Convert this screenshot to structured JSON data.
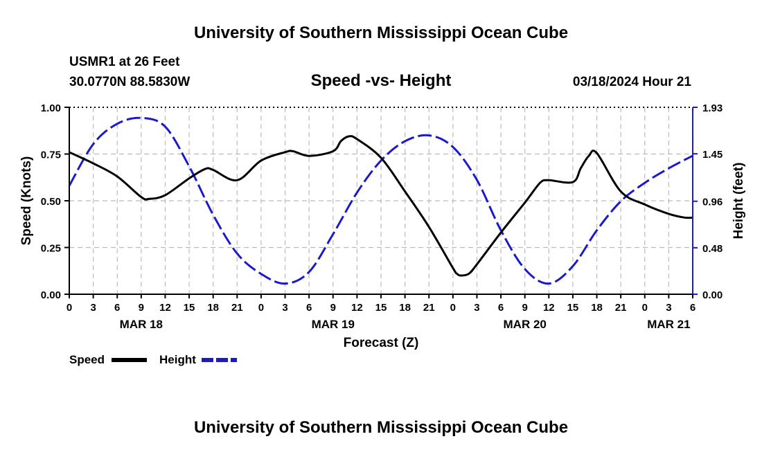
{
  "header": {
    "title": "University of Southern Mississippi Ocean Cube",
    "station": "USMR1 at 26 Feet",
    "location": "30.0770N  88.5830W",
    "subtitle": "Speed -vs- Height",
    "datetime": "03/18/2024 Hour 21"
  },
  "footer": {
    "title": "University of Southern Mississippi Ocean Cube"
  },
  "colors": {
    "speed": "#000000",
    "height": "#1a1acc",
    "grid": "#bbbbbb",
    "background": "#ffffff"
  },
  "chart_data": {
    "type": "line",
    "title": "Speed -vs- Height",
    "xlabel": "Forecast (Z)",
    "ylabel": "Speed (Knots)",
    "y2label": "Height (feet)",
    "xlim": [
      0,
      78
    ],
    "ylim": [
      0,
      1.0
    ],
    "y2lim": [
      0,
      1.93
    ],
    "x_ticks": [
      0,
      3,
      6,
      9,
      12,
      15,
      18,
      21,
      24,
      27,
      30,
      33,
      36,
      39,
      42,
      45,
      48,
      51,
      54,
      57,
      60,
      63,
      66,
      69,
      72,
      75,
      78
    ],
    "x_tick_labels": [
      "0",
      "3",
      "6",
      "9",
      "12",
      "15",
      "18",
      "21",
      "0",
      "3",
      "6",
      "9",
      "12",
      "15",
      "18",
      "21",
      "0",
      "3",
      "6",
      "9",
      "12",
      "15",
      "18",
      "21",
      "0",
      "3",
      "6"
    ],
    "date_labels": [
      {
        "x": 9,
        "label": "MAR 18"
      },
      {
        "x": 33,
        "label": "MAR 19"
      },
      {
        "x": 57,
        "label": "MAR 20"
      },
      {
        "x": 75,
        "label": "MAR 21"
      }
    ],
    "y_ticks": [
      0.0,
      0.25,
      0.5,
      0.75,
      1.0
    ],
    "y_tick_labels": [
      "0.00",
      "0.25",
      "0.50",
      "0.75",
      "1.00"
    ],
    "y2_ticks": [
      0.0,
      0.48,
      0.96,
      1.45,
      1.93
    ],
    "y2_tick_labels": [
      "0.00",
      "0.48",
      "0.96",
      "1.45",
      "1.93"
    ],
    "grid": true,
    "legend": [
      {
        "name": "Speed",
        "style": "solid",
        "color": "#000000"
      },
      {
        "name": "Height",
        "style": "dashed",
        "color": "#1a1acc"
      }
    ],
    "legend_position": "bottom-left",
    "series": [
      {
        "name": "Speed",
        "axis": "left",
        "style": "solid",
        "x": [
          0,
          3,
          6,
          9,
          10,
          12,
          15,
          17,
          18,
          21,
          24,
          27,
          28,
          30,
          33,
          34,
          35,
          36,
          39,
          42,
          45,
          48,
          48.5,
          49,
          50,
          51,
          54,
          57,
          57.7,
          59,
          60,
          63,
          64,
          65,
          66,
          69,
          72,
          75,
          77,
          78
        ],
        "y": [
          0.76,
          0.7,
          0.63,
          0.52,
          0.51,
          0.53,
          0.62,
          0.67,
          0.665,
          0.61,
          0.715,
          0.76,
          0.765,
          0.74,
          0.765,
          0.82,
          0.845,
          0.83,
          0.73,
          0.55,
          0.36,
          0.14,
          0.11,
          0.1,
          0.11,
          0.16,
          0.33,
          0.49,
          0.53,
          0.6,
          0.61,
          0.6,
          0.675,
          0.74,
          0.755,
          0.55,
          0.48,
          0.43,
          0.41,
          0.41
        ]
      },
      {
        "name": "Height",
        "axis": "right",
        "style": "dashed",
        "x": [
          0,
          3,
          6,
          9,
          12,
          15,
          18,
          21,
          24,
          27,
          30,
          33,
          36,
          39,
          42,
          45,
          48,
          51,
          54,
          57,
          60,
          63,
          66,
          69,
          72,
          75,
          78
        ],
        "y": [
          1.12,
          1.55,
          1.76,
          1.82,
          1.73,
          1.32,
          0.82,
          0.42,
          0.21,
          0.11,
          0.23,
          0.62,
          1.05,
          1.38,
          1.58,
          1.64,
          1.52,
          1.18,
          0.66,
          0.26,
          0.11,
          0.29,
          0.66,
          0.96,
          1.15,
          1.3,
          1.43
        ]
      }
    ]
  }
}
